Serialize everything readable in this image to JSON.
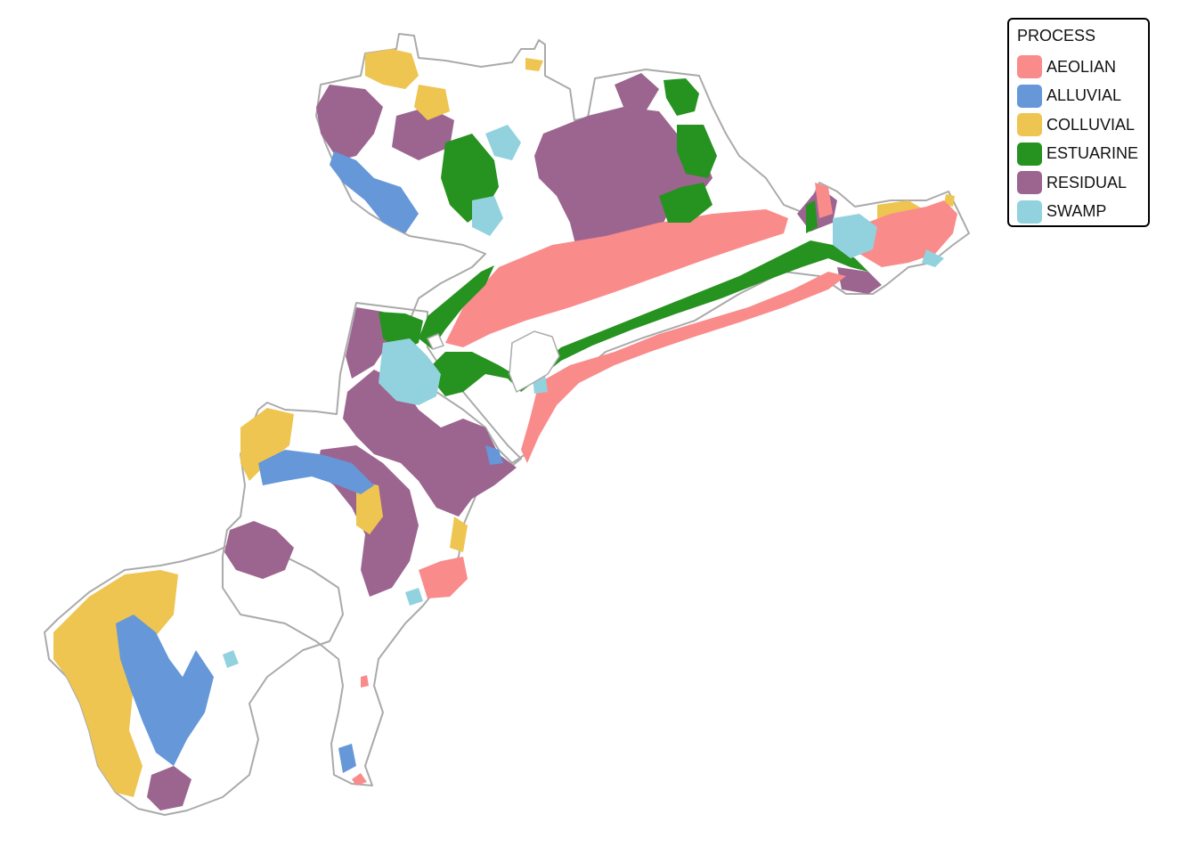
{
  "legend": {
    "title": "PROCESS",
    "items": [
      {
        "label": "AEOLIAN",
        "color": "#FA8B8B"
      },
      {
        "label": "ALLUVIAL",
        "color": "#6597D9"
      },
      {
        "label": "COLLUVIAL",
        "color": "#EEC550"
      },
      {
        "label": "ESTUARINE",
        "color": "#26921F"
      },
      {
        "label": "RESIDUAL",
        "color": "#9C6590"
      },
      {
        "label": "SWAMP",
        "color": "#92D2DE"
      }
    ]
  },
  "colors": {
    "boundary": "#AAAAAA",
    "background": "#FFFFFF"
  }
}
